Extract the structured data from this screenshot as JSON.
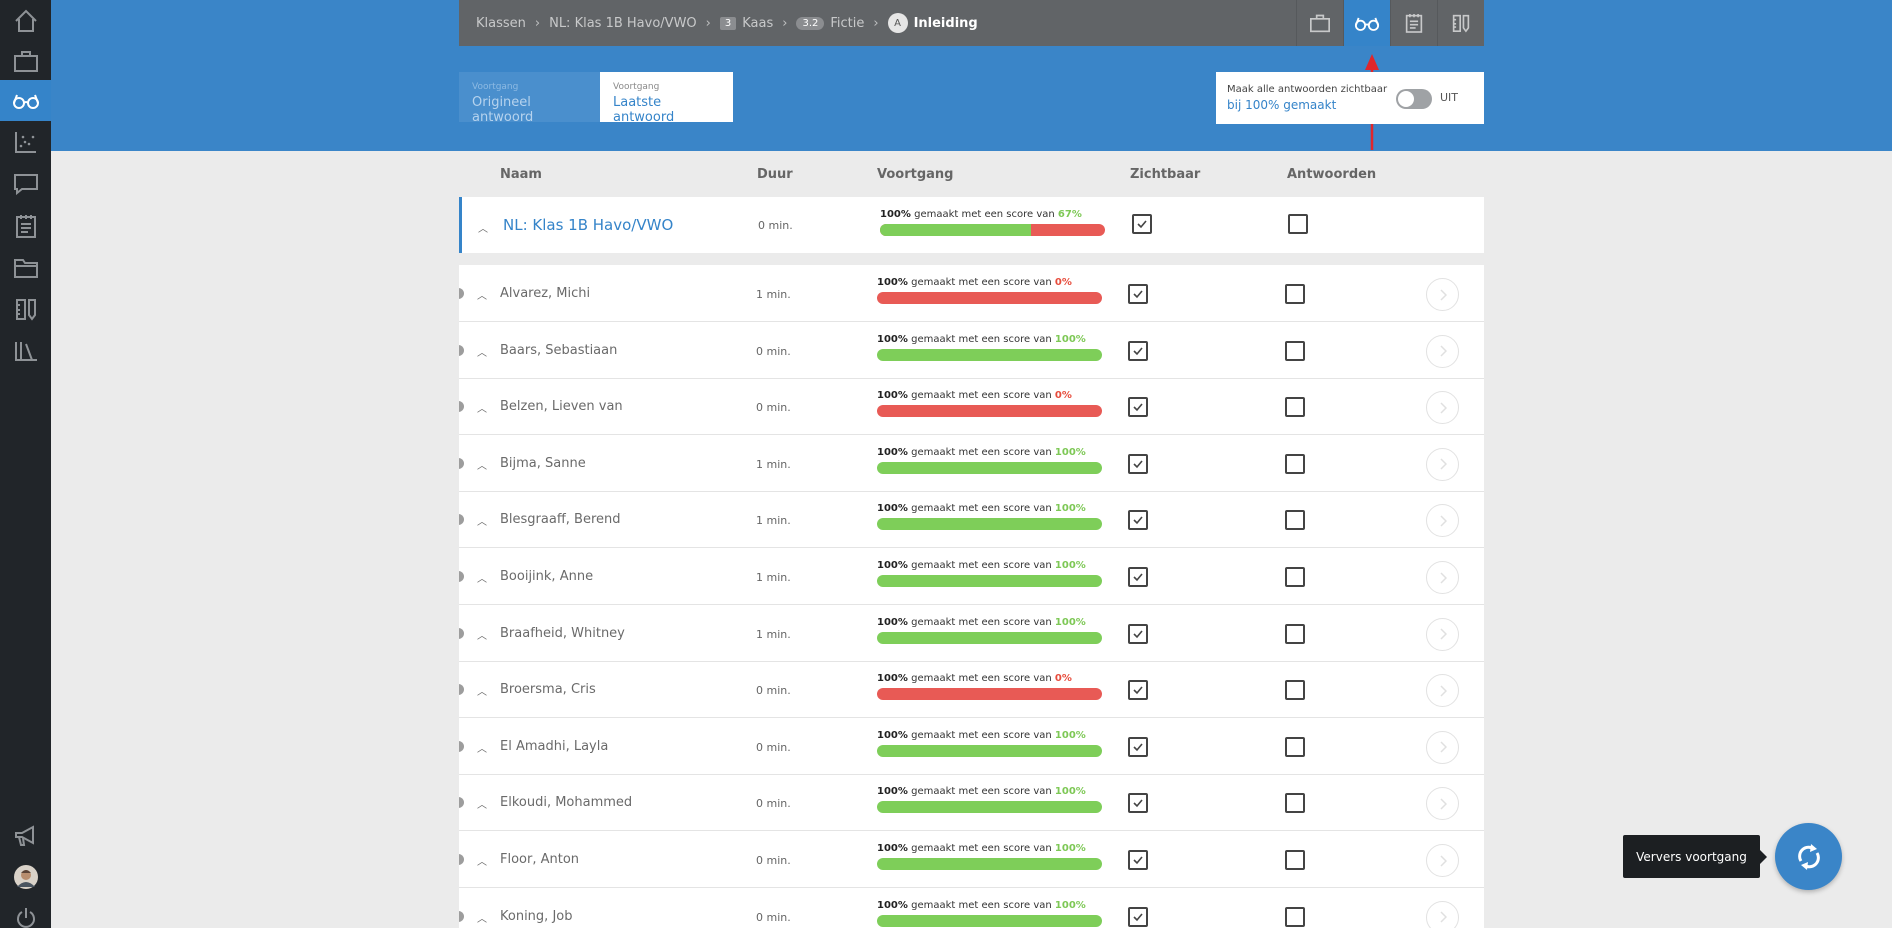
{
  "sidebar": {
    "items": [
      {
        "name": "home-icon",
        "active": false
      },
      {
        "name": "briefcase-icon",
        "active": false
      },
      {
        "name": "glasses-icon",
        "active": true
      },
      {
        "name": "chart-icon",
        "active": false
      },
      {
        "name": "chat-icon",
        "active": false
      },
      {
        "name": "notepad-icon",
        "active": false
      },
      {
        "name": "folder-icon",
        "active": false
      },
      {
        "name": "ruler-pencil-icon",
        "active": false
      },
      {
        "name": "library-icon",
        "active": false
      }
    ],
    "bottom": [
      {
        "name": "megaphone-icon"
      },
      {
        "name": "avatar"
      },
      {
        "name": "power-icon"
      }
    ]
  },
  "breadcrumb": {
    "items": [
      {
        "label": "Klassen"
      },
      {
        "label": "NL: Klas 1B Havo/VWO"
      },
      {
        "badge": "3",
        "label": "Kaas"
      },
      {
        "badge": "3.2",
        "label": "Fictie"
      },
      {
        "badge": "A",
        "label": "Inleiding"
      }
    ]
  },
  "tools": [
    "briefcase-icon",
    "glasses-icon",
    "notepad-icon",
    "ruler-pencil-icon"
  ],
  "progress_toggle": {
    "original": {
      "small": "Voortgang",
      "label": "Origineel antwoord"
    },
    "latest": {
      "small": "Voortgang",
      "label": "Laatste antwoord"
    }
  },
  "visibility": {
    "line1": "Maak alle antwoorden zichtbaar",
    "line2": "bij 100% gemaakt",
    "switch_label": "UIT"
  },
  "columns": {
    "name": "Naam",
    "duration": "Duur",
    "progress": "Voortgang",
    "visible": "Zichtbaar",
    "answers": "Antwoorden"
  },
  "progress_text": {
    "mid": "gemaakt met een score van"
  },
  "class_row": {
    "name": "NL: Klas 1B Havo/VWO",
    "duration": "0 min.",
    "done": "100%",
    "score": "67%",
    "score_value": 67
  },
  "students": [
    {
      "name": "Alvarez, Michi",
      "duration": "1 min.",
      "done": "100%",
      "score": "0%",
      "score_value": 0
    },
    {
      "name": "Baars, Sebastiaan",
      "duration": "0 min.",
      "done": "100%",
      "score": "100%",
      "score_value": 100
    },
    {
      "name": "Belzen, Lieven van",
      "duration": "0 min.",
      "done": "100%",
      "score": "0%",
      "score_value": 0
    },
    {
      "name": "Bijma, Sanne",
      "duration": "1 min.",
      "done": "100%",
      "score": "100%",
      "score_value": 100
    },
    {
      "name": "Blesgraaff, Berend",
      "duration": "1 min.",
      "done": "100%",
      "score": "100%",
      "score_value": 100
    },
    {
      "name": "Booijink, Anne",
      "duration": "1 min.",
      "done": "100%",
      "score": "100%",
      "score_value": 100
    },
    {
      "name": "Braafheid, Whitney",
      "duration": "1 min.",
      "done": "100%",
      "score": "100%",
      "score_value": 100
    },
    {
      "name": "Broersma, Cris",
      "duration": "0 min.",
      "done": "100%",
      "score": "0%",
      "score_value": 0
    },
    {
      "name": "El Amadhi, Layla",
      "duration": "0 min.",
      "done": "100%",
      "score": "100%",
      "score_value": 100
    },
    {
      "name": "Elkoudi, Mohammed",
      "duration": "0 min.",
      "done": "100%",
      "score": "100%",
      "score_value": 100
    },
    {
      "name": "Floor, Anton",
      "duration": "0 min.",
      "done": "100%",
      "score": "100%",
      "score_value": 100
    },
    {
      "name": "Koning, Job",
      "duration": "0 min.",
      "done": "100%",
      "score": "100%",
      "score_value": 100
    }
  ],
  "refresh": {
    "tooltip": "Ververs voortgang"
  },
  "colors": {
    "accent": "#3584c9",
    "good": "#7ece59",
    "bad": "#e85a55"
  }
}
